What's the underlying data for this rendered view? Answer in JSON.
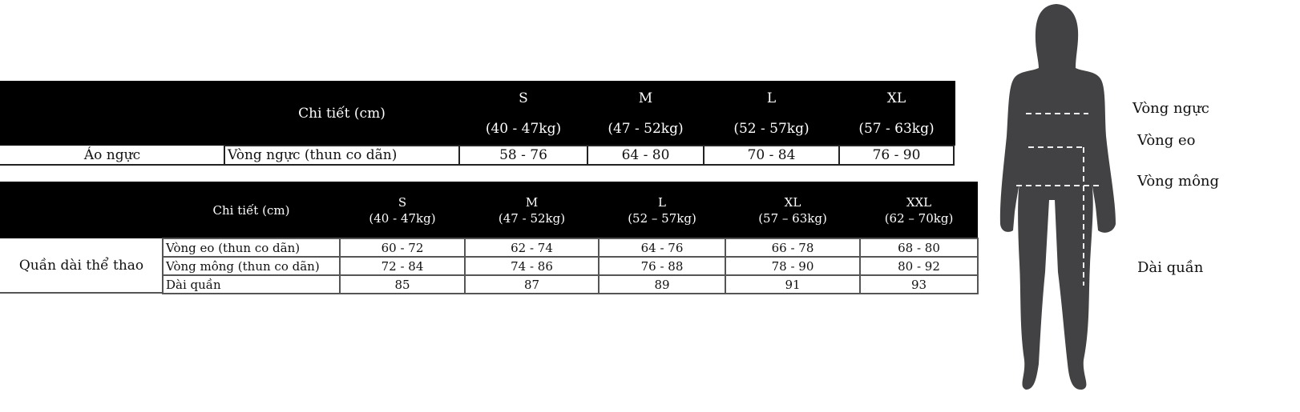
{
  "top_table": {
    "header_detail": "Chi tiết (cm)",
    "sizes": [
      {
        "size": "S",
        "weight": "(40 - 47kg)"
      },
      {
        "size": "M",
        "weight": "(47 - 52kg)"
      },
      {
        "size": "L",
        "weight": "(52 - 57kg)"
      },
      {
        "size": "XL",
        "weight": "(57 - 63kg)"
      }
    ],
    "category": "Áo ngực",
    "rows": [
      {
        "detail": "Vòng ngực (thun co dãn)",
        "values": [
          "58 - 76",
          "64 - 80",
          "70 - 84",
          "76 - 90"
        ]
      }
    ]
  },
  "bottom_table": {
    "header_detail": "Chi tiết (cm)",
    "sizes": [
      {
        "size": "S",
        "weight": "(40 - 47kg)"
      },
      {
        "size": "M",
        "weight": "(47 - 52kg)"
      },
      {
        "size": "L",
        "weight": "(52 – 57kg)"
      },
      {
        "size": "XL",
        "weight": "(57 – 63kg)"
      },
      {
        "size": "XXL",
        "weight": "(62 – 70kg)"
      }
    ],
    "category": "Quần dài thể thao",
    "rows": [
      {
        "detail": "Vòng eo (thun co dãn)",
        "values": [
          "60 - 72",
          "62 - 74",
          "64 - 76",
          "66 - 78",
          "68 - 80"
        ]
      },
      {
        "detail": "Vòng mông (thun co dãn)",
        "values": [
          "72 - 84",
          "74 - 86",
          "76 - 88",
          "78 - 90",
          "80 - 92"
        ]
      },
      {
        "detail": "Dài quần",
        "values": [
          "85",
          "87",
          "89",
          "91",
          "93"
        ]
      }
    ]
  },
  "figure": {
    "labels": {
      "chest": "Vòng ngực",
      "waist": "Vòng eo",
      "hip": "Vòng mông",
      "length": "Dài quần"
    },
    "silhouette_color": "#424244"
  }
}
